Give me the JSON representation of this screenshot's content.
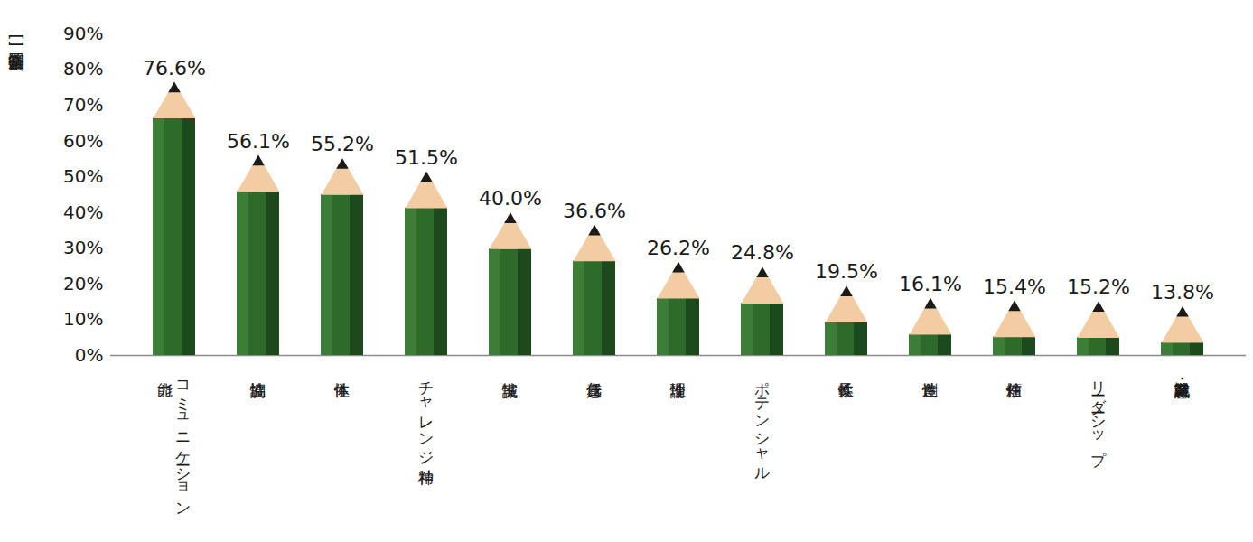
{
  "chart_data": {
    "type": "bar",
    "ylabel": "[回答企業割合]",
    "categories": [
      "コミュニケーション能力",
      "協調性",
      "主体性",
      "チャレンジ精神",
      "誠実性",
      "責任感",
      "論理性",
      "ポテンシャル",
      "柔軟性",
      "創造性",
      "信頼性",
      "リーダーシップ",
      "職業観・就業意識"
    ],
    "values": [
      76.6,
      56.1,
      55.2,
      51.5,
      40.0,
      36.6,
      26.2,
      24.8,
      19.5,
      16.1,
      15.4,
      15.2,
      13.8
    ],
    "value_labels": [
      "76.6%",
      "56.1%",
      "55.2%",
      "51.5%",
      "40.0%",
      "36.6%",
      "26.2%",
      "24.8%",
      "19.5%",
      "16.1%",
      "15.4%",
      "15.2%",
      "13.8%"
    ],
    "color": "#2e6b2b",
    "ylim": [
      0,
      90
    ],
    "yticks": [
      {
        "value": 0,
        "label": "0%"
      },
      {
        "value": 10,
        "label": "10%"
      },
      {
        "value": 20,
        "label": "20%"
      },
      {
        "value": 30,
        "label": "30%"
      },
      {
        "value": 40,
        "label": "40%"
      },
      {
        "value": 50,
        "label": "50%"
      },
      {
        "value": 60,
        "label": "60%"
      },
      {
        "value": 70,
        "label": "70%"
      },
      {
        "value": 80,
        "label": "80%"
      },
      {
        "value": 90,
        "label": "90%"
      }
    ],
    "grid": false,
    "data_labels": true
  }
}
